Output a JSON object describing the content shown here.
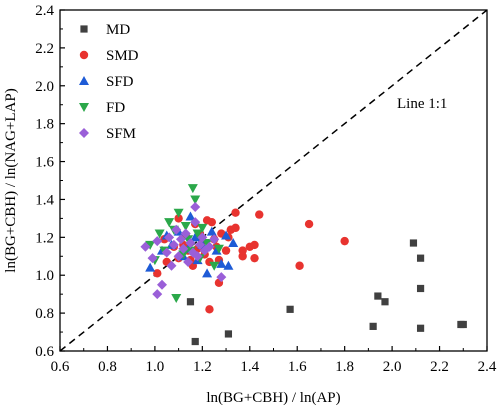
{
  "chart_data": {
    "type": "scatter",
    "title": "",
    "xlabel": "ln(BG+CBH) / ln(AP)",
    "ylabel": "ln(BG+CBH) / ln(NAG+LAP)",
    "xlim": [
      0.6,
      2.4
    ],
    "ylim": [
      0.6,
      2.4
    ],
    "xticks": [
      "0.6",
      "0.8",
      "1.0",
      "1.2",
      "1.4",
      "1.6",
      "1.8",
      "2.0",
      "2.2",
      "2.4"
    ],
    "yticks": [
      "0.6",
      "0.8",
      "1.0",
      "1.2",
      "1.4",
      "1.6",
      "1.8",
      "2.0",
      "2.2",
      "2.4"
    ],
    "grid": false,
    "legend_position": "top-left",
    "reference_line": {
      "label": "Line 1:1",
      "from": [
        0.6,
        0.6
      ],
      "to": [
        2.4,
        2.4
      ],
      "style": "dashed"
    },
    "series": [
      {
        "name": "MD",
        "marker": "square",
        "color": "#404040",
        "points": [
          [
            1.15,
            0.86
          ],
          [
            1.17,
            0.65
          ],
          [
            1.31,
            0.69
          ],
          [
            1.57,
            0.82
          ],
          [
            1.92,
            0.73
          ],
          [
            1.94,
            0.89
          ],
          [
            1.97,
            0.86
          ],
          [
            2.09,
            1.17
          ],
          [
            2.12,
            1.09
          ],
          [
            2.12,
            0.93
          ],
          [
            2.12,
            0.72
          ],
          [
            2.29,
            0.74
          ],
          [
            2.3,
            0.74
          ]
        ]
      },
      {
        "name": "SMD",
        "marker": "circle",
        "color": "#e8332f",
        "points": [
          [
            1.01,
            1.01
          ],
          [
            1.04,
            1.19
          ],
          [
            1.05,
            1.07
          ],
          [
            1.08,
            1.15
          ],
          [
            1.1,
            1.09
          ],
          [
            1.1,
            1.3
          ],
          [
            1.12,
            1.16
          ],
          [
            1.13,
            1.21
          ],
          [
            1.14,
            1.13
          ],
          [
            1.15,
            1.08
          ],
          [
            1.16,
            1.05
          ],
          [
            1.17,
            1.27
          ],
          [
            1.18,
            1.14
          ],
          [
            1.19,
            1.22
          ],
          [
            1.2,
            1.18
          ],
          [
            1.21,
            1.11
          ],
          [
            1.22,
            1.29
          ],
          [
            1.23,
            1.07
          ],
          [
            1.23,
            0.82
          ],
          [
            1.24,
            1.28
          ],
          [
            1.25,
            1.19
          ],
          [
            1.26,
            1.15
          ],
          [
            1.27,
            1.08
          ],
          [
            1.27,
            0.96
          ],
          [
            1.28,
            1.22
          ],
          [
            1.3,
            1.13
          ],
          [
            1.31,
            1.2
          ],
          [
            1.32,
            1.24
          ],
          [
            1.34,
            1.25
          ],
          [
            1.34,
            1.33
          ],
          [
            1.37,
            1.1
          ],
          [
            1.37,
            1.13
          ],
          [
            1.4,
            1.15
          ],
          [
            1.42,
            1.09
          ],
          [
            1.42,
            1.16
          ],
          [
            1.44,
            1.32
          ],
          [
            1.61,
            1.05
          ],
          [
            1.65,
            1.27
          ],
          [
            1.8,
            1.18
          ]
        ]
      },
      {
        "name": "SFD",
        "marker": "triangle-up",
        "color": "#1e5bd6",
        "points": [
          [
            0.98,
            1.04
          ],
          [
            1.03,
            1.13
          ],
          [
            1.05,
            1.21
          ],
          [
            1.07,
            1.16
          ],
          [
            1.1,
            1.23
          ],
          [
            1.12,
            1.1
          ],
          [
            1.14,
            1.14
          ],
          [
            1.15,
            1.31
          ],
          [
            1.17,
            1.2
          ],
          [
            1.18,
            1.08
          ],
          [
            1.2,
            1.16
          ],
          [
            1.22,
            1.01
          ],
          [
            1.24,
            1.23
          ],
          [
            1.26,
            1.13
          ],
          [
            1.28,
            1.06
          ],
          [
            1.3,
            1.21
          ],
          [
            1.31,
            1.05
          ],
          [
            1.33,
            1.17
          ]
        ]
      },
      {
        "name": "FD",
        "marker": "triangle-down",
        "color": "#2ba84a",
        "points": [
          [
            0.98,
            1.16
          ],
          [
            1.0,
            1.08
          ],
          [
            1.02,
            1.22
          ],
          [
            1.04,
            1.13
          ],
          [
            1.06,
            1.28
          ],
          [
            1.08,
            1.24
          ],
          [
            1.09,
            0.88
          ],
          [
            1.1,
            1.33
          ],
          [
            1.12,
            1.11
          ],
          [
            1.13,
            1.26
          ],
          [
            1.14,
            1.19
          ],
          [
            1.15,
            1.13
          ],
          [
            1.16,
            1.46
          ],
          [
            1.17,
            1.4
          ],
          [
            1.18,
            1.22
          ],
          [
            1.19,
            1.09
          ],
          [
            1.2,
            1.25
          ],
          [
            1.22,
            1.17
          ],
          [
            1.25,
            1.05
          ],
          [
            1.27,
            1.14
          ]
        ]
      },
      {
        "name": "SFM",
        "marker": "diamond",
        "color": "#9a5fd8",
        "points": [
          [
            0.96,
            1.15
          ],
          [
            0.99,
            1.09
          ],
          [
            1.01,
            1.18
          ],
          [
            1.01,
            0.9
          ],
          [
            1.03,
            0.95
          ],
          [
            1.05,
            1.12
          ],
          [
            1.06,
            1.2
          ],
          [
            1.07,
            1.05
          ],
          [
            1.08,
            1.16
          ],
          [
            1.09,
            1.24
          ],
          [
            1.1,
            1.1
          ],
          [
            1.11,
            1.19
          ],
          [
            1.12,
            1.14
          ],
          [
            1.13,
            1.22
          ],
          [
            1.14,
            1.07
          ],
          [
            1.15,
            1.17
          ],
          [
            1.16,
            1.12
          ],
          [
            1.17,
            1.36
          ],
          [
            1.17,
            1.28
          ],
          [
            1.18,
            1.1
          ],
          [
            1.19,
            1.16
          ],
          [
            1.2,
            1.2
          ],
          [
            1.21,
            1.13
          ],
          [
            1.23,
            1.15
          ],
          [
            1.25,
            1.19
          ],
          [
            1.28,
            0.99
          ]
        ]
      }
    ]
  }
}
